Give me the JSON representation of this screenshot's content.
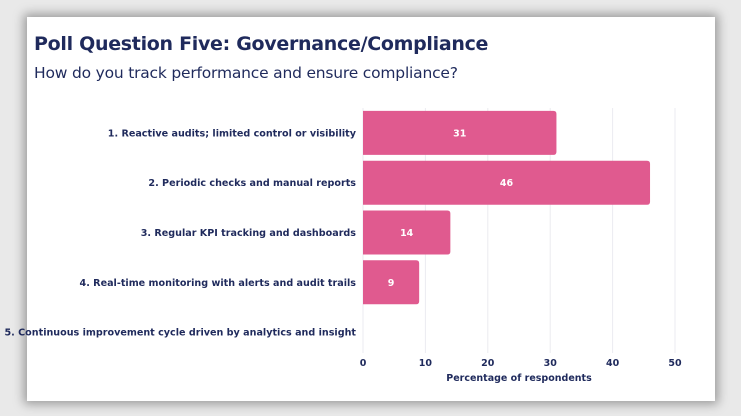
{
  "title": "Poll Question Five: Governance/Compliance",
  "subtitle": "How do you track performance and ensure compliance?",
  "chart_data": {
    "type": "bar",
    "orientation": "horizontal",
    "categories": [
      "1. Reactive audits; limited control or visibility",
      "2. Periodic checks and manual reports",
      "3. Regular KPI tracking and dashboards",
      "4. Real-time monitoring with alerts and audit trails",
      "5. Continuous improvement cycle driven by analytics and insight"
    ],
    "values": [
      31,
      46,
      14,
      9,
      0
    ],
    "data_labels": [
      "31",
      "46",
      "14",
      "9",
      ""
    ],
    "xlabel": "Percentage of respondents",
    "ylabel": "",
    "xlim": [
      0,
      50
    ],
    "xticks": [
      "0",
      "10",
      "20",
      "30",
      "40",
      "50"
    ],
    "grid": "vertical",
    "bar_color": "#e05a8f"
  }
}
